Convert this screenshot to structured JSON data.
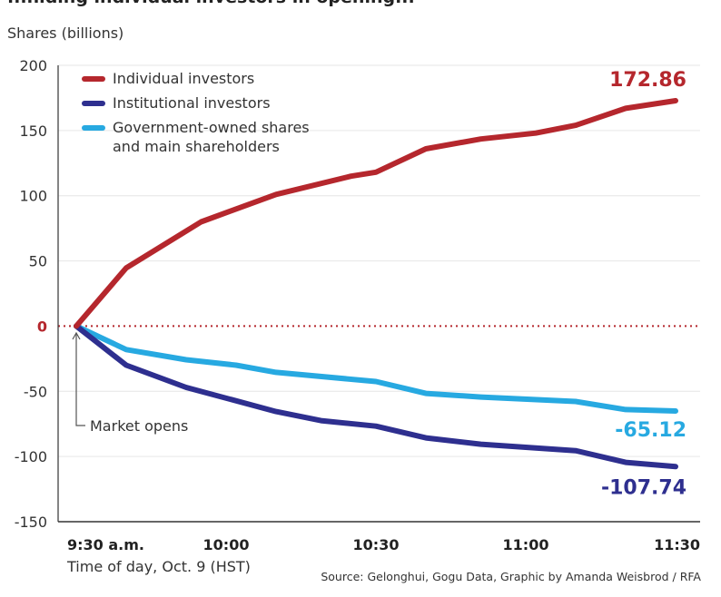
{
  "clipped_title": "...hiding individual investors in opening...",
  "chart_data": {
    "type": "line",
    "title": "",
    "ylabel": "Shares (billions)",
    "xlabel": "Time of day, Oct. 9 (HST)",
    "source": "Source: Gelonghui, Gogu Data, Graphic by Amanda Weisbrod / RFA",
    "ylim": [
      -150,
      200
    ],
    "yticks": [
      200,
      150,
      100,
      50,
      0,
      -50,
      -100,
      -150
    ],
    "xlim_minutes": [
      0,
      120
    ],
    "xticks": [
      {
        "minutes": 0,
        "label": "9:30 a.m."
      },
      {
        "minutes": 30,
        "label": "10:00"
      },
      {
        "minutes": 60,
        "label": "10:30"
      },
      {
        "minutes": 90,
        "label": "11:00"
      },
      {
        "minutes": 120,
        "label": "11:30"
      }
    ],
    "grid": true,
    "legend_position": "top-left",
    "zero_line": {
      "style": "dotted",
      "color": "#b5272d"
    },
    "annotation": {
      "text": "Market opens",
      "minutes": 0
    },
    "series": [
      {
        "name": "Individual investors",
        "color": "#b5272d",
        "end_label": "172.86",
        "points": [
          [
            0,
            0
          ],
          [
            10,
            44.6
          ],
          [
            25,
            80
          ],
          [
            40,
            101
          ],
          [
            55,
            115
          ],
          [
            60,
            118
          ],
          [
            70,
            136
          ],
          [
            81,
            143.5
          ],
          [
            92,
            148
          ],
          [
            100,
            154
          ],
          [
            110,
            167
          ],
          [
            120,
            172.86
          ]
        ]
      },
      {
        "name": "Institutional investors",
        "color": "#2e2f8f",
        "end_label": "-107.74",
        "points": [
          [
            0,
            0
          ],
          [
            10,
            -30
          ],
          [
            22,
            -47
          ],
          [
            40,
            -65.5
          ],
          [
            49,
            -72.5
          ],
          [
            60,
            -76.7
          ],
          [
            70,
            -85.7
          ],
          [
            81,
            -90.6
          ],
          [
            100,
            -95.5
          ],
          [
            110,
            -104.5
          ],
          [
            120,
            -107.74
          ]
        ]
      },
      {
        "name": "Government-owned shares\nand main shareholders",
        "color": "#27a9e1",
        "end_label": "-65.12",
        "points": [
          [
            0,
            0
          ],
          [
            10,
            -18
          ],
          [
            22,
            -25.8
          ],
          [
            32,
            -30
          ],
          [
            40,
            -35.5
          ],
          [
            60,
            -42.5
          ],
          [
            70,
            -51.6
          ],
          [
            81,
            -54.4
          ],
          [
            100,
            -57.8
          ],
          [
            110,
            -64
          ],
          [
            120,
            -65.12
          ]
        ]
      }
    ]
  }
}
